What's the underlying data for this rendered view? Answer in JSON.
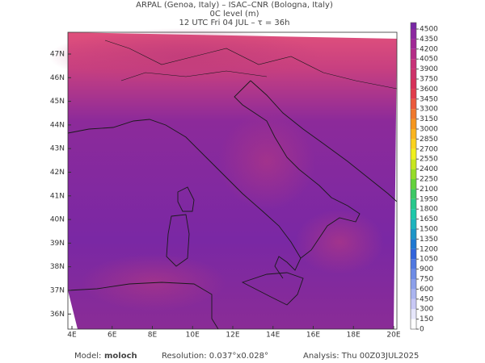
{
  "header": {
    "line1": "ARPAL (Genoa, Italy)  –  ISAC–CNR (Bologna, Italy)",
    "line2": "0C level (m)",
    "line3": "12 UTC Fri 04 JUL  –  τ = 36h"
  },
  "map": {
    "lat_labels": [
      "47N",
      "46N",
      "45N",
      "44N",
      "43N",
      "42N",
      "41N",
      "40N",
      "39N",
      "38N",
      "37N",
      "36N"
    ],
    "lon_labels": [
      "4E",
      "6E",
      "8E",
      "10E",
      "12E",
      "14E",
      "16E",
      "18E",
      "20E"
    ]
  },
  "colorbar": {
    "ticks": [
      0,
      150,
      300,
      450,
      600,
      750,
      900,
      1050,
      1200,
      1350,
      1500,
      1650,
      1800,
      1950,
      2100,
      2250,
      2400,
      2550,
      2700,
      2850,
      3000,
      3150,
      3300,
      3450,
      3600,
      3750,
      3900,
      4050,
      4200,
      4350,
      4500
    ],
    "colors": [
      "#ffffff",
      "#e6e6fa",
      "#c8c8f5",
      "#aab4f0",
      "#8ca0eb",
      "#6e8ce6",
      "#5078e1",
      "#3264dc",
      "#1e78d2",
      "#1e96c8",
      "#1eb4be",
      "#1ec8aa",
      "#28c88c",
      "#3cc864",
      "#64d23c",
      "#96dc28",
      "#c8e61e",
      "#f0f01e",
      "#fad21e",
      "#fab41e",
      "#f5961e",
      "#f0782d",
      "#eb5a3c",
      "#e13c4b",
      "#d7325a",
      "#cd3269",
      "#c83278",
      "#b42d87",
      "#a02896",
      "#8c28a0",
      "#7828a5"
    ]
  },
  "footer": {
    "model_label": "Model:",
    "model": "moloch",
    "resolution": "Resolution: 0.037°x0.028°",
    "analysis": "Analysis: Thu 00Z03JUL2025"
  }
}
